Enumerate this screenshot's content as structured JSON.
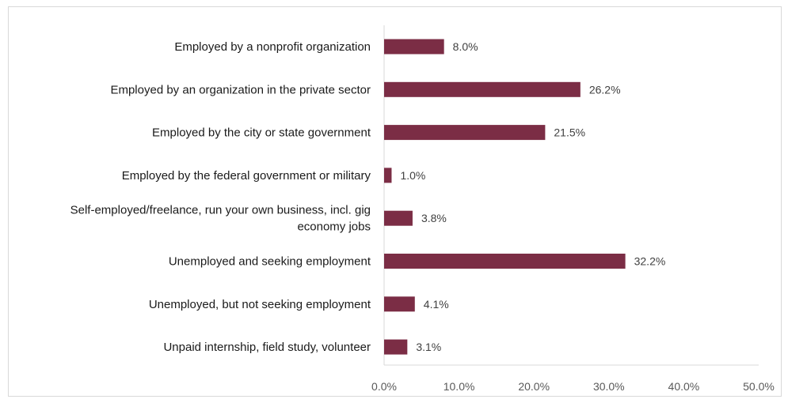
{
  "chart_data": {
    "type": "bar",
    "orientation": "horizontal",
    "categories": [
      "Employed by a nonprofit organization",
      "Employed by an organization in the private sector",
      "Employed by the city or state government",
      "Employed by the federal government or military",
      "Self-employed/freelance, run your own business, incl. gig economy jobs",
      "Unemployed and seeking employment",
      "Unemployed, but not seeking employment",
      "Unpaid internship, field study, volunteer"
    ],
    "category_lines": [
      [
        "Employed by a nonprofit organization"
      ],
      [
        "Employed by an organization in the private sector"
      ],
      [
        "Employed by the city or state government"
      ],
      [
        "Employed by the federal government or military"
      ],
      [
        "Self-employed/freelance, run your own business, incl. gig",
        "economy jobs"
      ],
      [
        "Unemployed and seeking employment"
      ],
      [
        "Unemployed, but not seeking employment"
      ],
      [
        "Unpaid internship, field study, volunteer"
      ]
    ],
    "values": [
      8.0,
      26.2,
      21.5,
      1.0,
      3.8,
      32.2,
      4.1,
      3.1
    ],
    "value_labels": [
      "8.0%",
      "26.2%",
      "21.5%",
      "1.0%",
      "3.8%",
      "32.2%",
      "4.1%",
      "3.1%"
    ],
    "xlim": [
      0,
      50
    ],
    "xticks": [
      "0.0%",
      "10.0%",
      "20.0%",
      "30.0%",
      "40.0%",
      "50.0%"
    ],
    "title": "",
    "xlabel": "",
    "ylabel": "",
    "grid": false,
    "bar_color": "#7b2d45",
    "axis_color": "#d9d9d9"
  }
}
